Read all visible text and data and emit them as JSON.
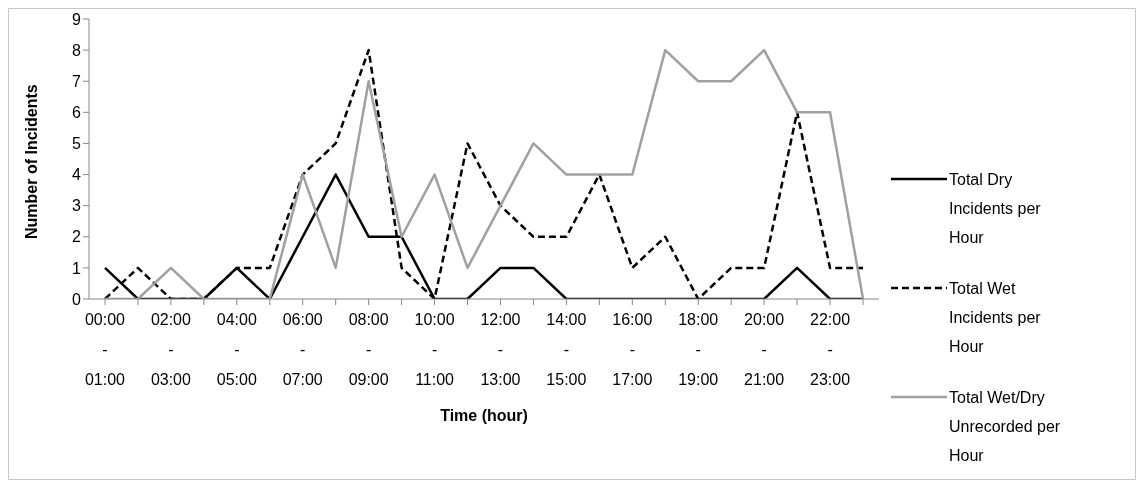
{
  "chart_data": {
    "type": "line",
    "xlabel": "Time (hour)",
    "ylabel": "Number of Incidents",
    "categories": [
      "00:00 - 01:00",
      null,
      "02:00 - 03:00",
      null,
      "04:00 - 05:00",
      null,
      "06:00 - 07:00",
      null,
      "08:00 - 09:00",
      null,
      "10:00 - 11:00",
      null,
      "12:00 - 13:00",
      null,
      "14:00 - 15:00",
      null,
      "16:00 - 17:00",
      null,
      "18:00 - 19:00",
      null,
      "20:00 - 21:00",
      null,
      "22:00 - 23:00",
      null
    ],
    "series": [
      {
        "name": "Total Dry Incidents per Hour",
        "color": "#000000",
        "line_style": "solid",
        "values": [
          1,
          0,
          0,
          0,
          1,
          0,
          2,
          4,
          2,
          2,
          0,
          0,
          1,
          1,
          0,
          0,
          0,
          0,
          0,
          0,
          0,
          1,
          0,
          0
        ]
      },
      {
        "name": "Total Wet Incidents per Hour",
        "color": "#000000",
        "line_style": "dashed",
        "values": [
          0,
          1,
          0,
          0,
          1,
          1,
          4,
          5,
          8,
          1,
          0,
          5,
          3,
          2,
          2,
          4,
          1,
          2,
          0,
          1,
          1,
          6,
          1,
          1
        ]
      },
      {
        "name": "Total Wet/Dry Unrecorded per Hour",
        "color": "#a0a0a0",
        "line_style": "solid",
        "values": [
          0,
          0,
          1,
          0,
          0,
          0,
          4,
          1,
          7,
          2,
          4,
          1,
          3,
          5,
          4,
          4,
          4,
          8,
          7,
          7,
          8,
          6,
          6,
          0
        ]
      }
    ],
    "ylim": [
      0,
      9
    ],
    "yticks": [
      0,
      1,
      2,
      3,
      4,
      5,
      6,
      7,
      8,
      9
    ],
    "legend": "right",
    "marker": "none"
  }
}
